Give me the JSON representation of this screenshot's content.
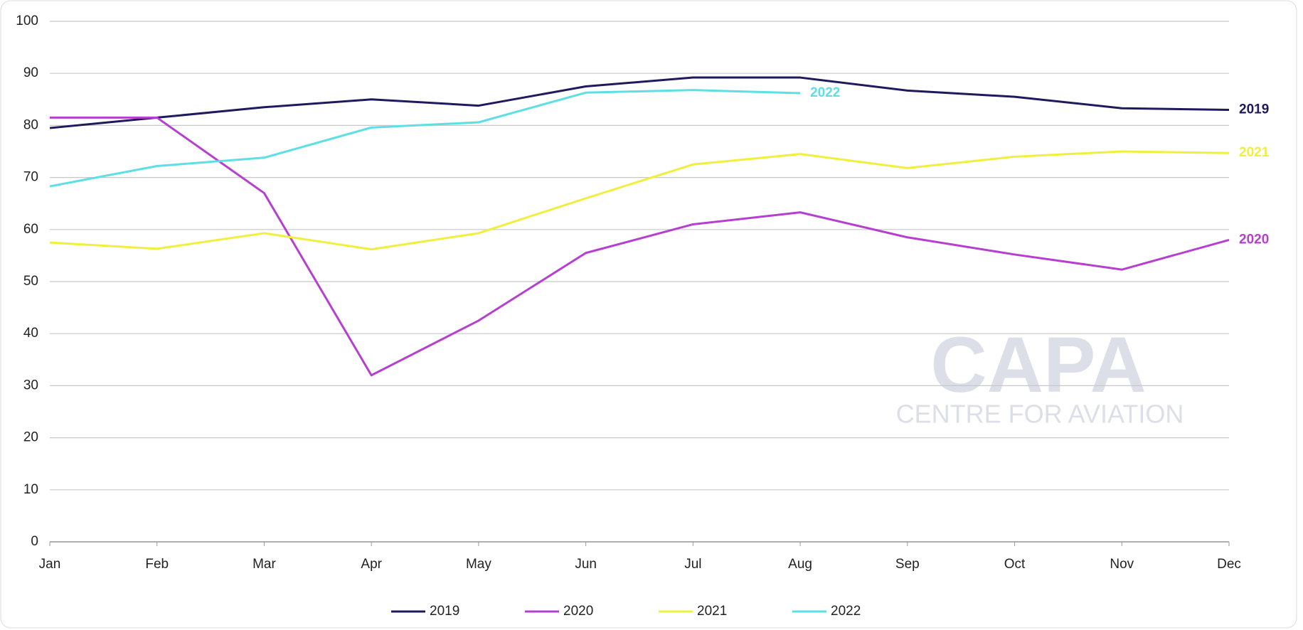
{
  "chart_data": {
    "type": "line",
    "categories": [
      "Jan",
      "Feb",
      "Mar",
      "Apr",
      "May",
      "Jun",
      "Jul",
      "Aug",
      "Sep",
      "Oct",
      "Nov",
      "Dec"
    ],
    "series": [
      {
        "name": "2019",
        "color": "#1f1a5e",
        "values": [
          79.5,
          81.5,
          83.5,
          85,
          83.8,
          87.5,
          89.2,
          89.2,
          86.7,
          85.5,
          83.3,
          83
        ]
      },
      {
        "name": "2020",
        "color": "#b63fd0",
        "values": [
          81.5,
          81.5,
          67,
          32,
          42.5,
          55.5,
          61,
          63.3,
          58.5,
          55.2,
          52.3,
          58
        ]
      },
      {
        "name": "2021",
        "color": "#f0f03c",
        "values": [
          57.5,
          56.3,
          59.3,
          56.2,
          59.3,
          66,
          72.5,
          74.5,
          71.8,
          74,
          75,
          74.7
        ]
      },
      {
        "name": "2022",
        "color": "#5ddfe6",
        "values": [
          68.3,
          72.2,
          73.8,
          79.6,
          80.6,
          86.3,
          86.8,
          86.2,
          null,
          null,
          null,
          null
        ]
      }
    ],
    "ylim": [
      0,
      100
    ],
    "yticks": [
      0,
      10,
      20,
      30,
      40,
      50,
      60,
      70,
      80,
      90,
      100
    ],
    "grid": true,
    "watermark": {
      "title": "CAPA",
      "subtitle": "CENTRE FOR AVIATION"
    }
  }
}
